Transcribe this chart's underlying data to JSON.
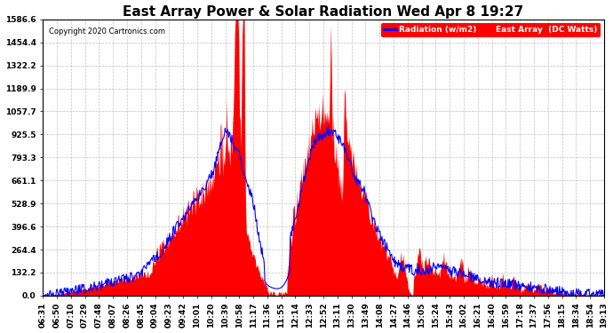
{
  "title": "East Array Power & Solar Radiation Wed Apr 8 19:27",
  "copyright": "Copyright 2020 Cartronics.com",
  "legend_radiation": "Radiation (w/m2)",
  "legend_east": "East Array  (DC Watts)",
  "y_ticks": [
    0.0,
    132.2,
    264.4,
    396.6,
    528.9,
    661.1,
    793.3,
    925.5,
    1057.7,
    1189.9,
    1322.2,
    1454.4,
    1586.6
  ],
  "y_max": 1586.6,
  "y_min": 0.0,
  "background_color": "#ffffff",
  "plot_bg": "#ffffff",
  "grid_color": "#c0c0c0",
  "title_fontsize": 11,
  "tick_fontsize": 6.5,
  "x_tick_labels": [
    "06:31",
    "06:50",
    "07:10",
    "07:29",
    "07:48",
    "08:07",
    "08:26",
    "08:45",
    "09:04",
    "09:23",
    "09:42",
    "10:01",
    "10:20",
    "10:39",
    "10:58",
    "11:17",
    "11:36",
    "11:55",
    "12:14",
    "12:33",
    "12:52",
    "13:11",
    "13:30",
    "13:49",
    "14:08",
    "14:27",
    "14:46",
    "15:05",
    "15:24",
    "15:43",
    "16:02",
    "16:21",
    "16:40",
    "16:59",
    "17:18",
    "17:37",
    "17:56",
    "18:15",
    "18:34",
    "18:54",
    "19:13"
  ]
}
